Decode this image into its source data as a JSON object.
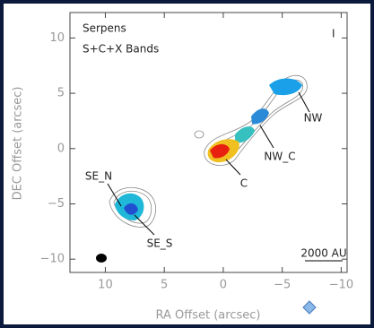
{
  "chart_data": {
    "type": "image-map",
    "title": "Serpens",
    "subtitle": "S+C+X Bands",
    "stokes": "I",
    "xlabel": "RA Offset (arcsec)",
    "ylabel": "DEC Offset (arcsec)",
    "xlim": [
      13,
      -10.5
    ],
    "ylim": [
      -11.2,
      12.3
    ],
    "xticks": [
      {
        "value": 10,
        "label": "10"
      },
      {
        "value": 5,
        "label": "5"
      },
      {
        "value": 0,
        "label": "0"
      },
      {
        "value": -5,
        "label": "−5"
      },
      {
        "value": -10,
        "label": "−10"
      }
    ],
    "yticks": [
      {
        "value": 10,
        "label": "10"
      },
      {
        "value": 5,
        "label": "5"
      },
      {
        "value": 0,
        "label": "0"
      },
      {
        "value": -5,
        "label": "−5"
      },
      {
        "value": -10,
        "label": "−10"
      }
    ],
    "annotations": [
      "NW",
      "NW_C",
      "C",
      "SE_N",
      "SE_S"
    ],
    "scalebar": "2000 AU"
  }
}
